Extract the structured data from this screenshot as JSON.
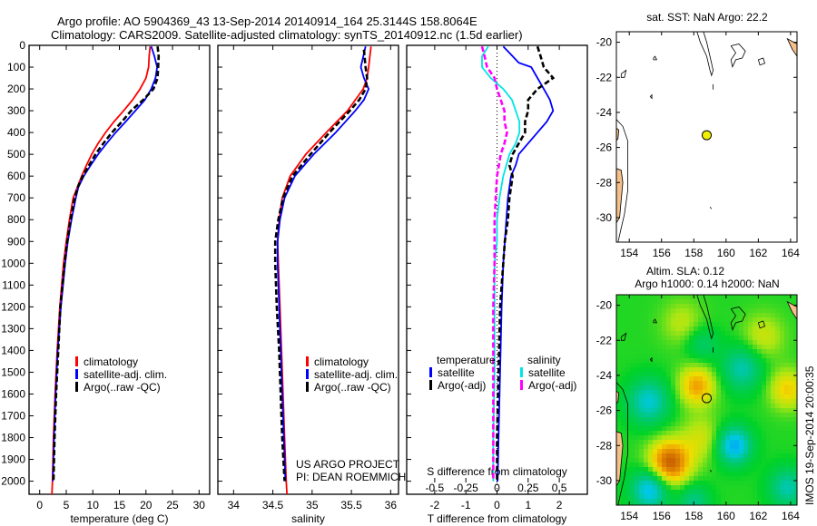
{
  "header": {
    "line1": "Argo profile: AO 5904369_43 13-Sep-2014 20140914_164 25.3144S 158.8064E",
    "line2": "Climatology: CARS2009. Satellite-adjusted climatology: synTS_20140912.nc (1.5d earlier)"
  },
  "colors": {
    "climatology": "#ff0000",
    "satellite": "#0000ff",
    "argo": "#000000",
    "sal_satellite": "#00e5e5",
    "sal_argo": "#ff00ff",
    "land": "#f5c08a",
    "float_marker": "#f0f000"
  },
  "chart_data": [
    {
      "id": "temperature",
      "type": "line",
      "xlabel": "temperature (deg C)",
      "ylabel": "",
      "xlim": [
        -2,
        32
      ],
      "ylim": [
        2060,
        0
      ],
      "xticks": [
        0,
        5,
        10,
        15,
        20,
        25,
        30
      ],
      "yticks": [
        0,
        100,
        200,
        300,
        400,
        500,
        600,
        700,
        800,
        900,
        1000,
        1100,
        1200,
        1300,
        1400,
        1500,
        1600,
        1700,
        1800,
        1900,
        2000
      ],
      "legend": {
        "placement": "lower-middle",
        "entries": [
          "climatology",
          "satellite-adj. clim.",
          "Argo(..raw -QC)"
        ]
      },
      "series": [
        {
          "name": "climatology",
          "color": "#ff0000",
          "style": "solid",
          "depth": [
            5,
            50,
            100,
            150,
            200,
            250,
            300,
            350,
            400,
            450,
            500,
            550,
            600,
            650,
            700,
            800,
            900,
            1000,
            1200,
            1400,
            1600,
            1800,
            2000,
            2060
          ],
          "values": [
            20.8,
            20.6,
            20.5,
            20.0,
            18.9,
            17.5,
            15.8,
            14.0,
            12.4,
            11.0,
            9.8,
            8.8,
            7.9,
            7.1,
            6.3,
            5.6,
            5.0,
            4.5,
            3.8,
            3.3,
            2.9,
            2.6,
            2.4,
            2.3
          ]
        },
        {
          "name": "satellite-adj. clim.",
          "color": "#0000ff",
          "style": "solid",
          "depth": [
            5,
            50,
            100,
            150,
            200,
            250,
            300,
            350,
            400,
            450,
            500,
            550,
            600,
            650,
            700,
            800,
            900,
            1000,
            1200,
            1400,
            1600,
            1800,
            2000
          ],
          "values": [
            21.0,
            21.6,
            22.1,
            21.8,
            21.0,
            19.8,
            18.0,
            16.2,
            14.3,
            12.6,
            11.0,
            9.6,
            8.3,
            7.3,
            6.8,
            6.0,
            5.3,
            4.8,
            4.0,
            3.4,
            3.0,
            2.7,
            2.5
          ]
        },
        {
          "name": "Argo(..raw -QC)",
          "color": "#000000",
          "style": "dashed",
          "depth": [
            5,
            50,
            100,
            150,
            200,
            250,
            300,
            350,
            400,
            450,
            500,
            550,
            600,
            650,
            700,
            800,
            900,
            1000,
            1200,
            1400,
            1600,
            1800,
            2000
          ],
          "values": [
            22.2,
            22.4,
            22.3,
            22.2,
            21.4,
            19.5,
            17.2,
            15.5,
            13.6,
            12.0,
            10.5,
            9.3,
            8.1,
            7.2,
            6.6,
            5.8,
            5.2,
            4.7,
            3.9,
            3.5,
            3.1,
            2.8,
            2.6
          ]
        }
      ]
    },
    {
      "id": "salinity",
      "type": "line",
      "xlabel": "salinity",
      "ylabel": "",
      "xlim": [
        33.8,
        36.1
      ],
      "ylim": [
        2060,
        0
      ],
      "xticks": [
        34,
        34.5,
        35,
        35.5,
        36
      ],
      "xticklabels": [
        "34",
        "34.5",
        "35",
        "35.5",
        "36"
      ],
      "legend": {
        "placement": "lower-middle",
        "entries": [
          "climatology",
          "satellite-adj. clim.",
          "Argo(..raw -QC)"
        ]
      },
      "annotation": [
        "US ARGO PROJECT",
        "PI: DEAN ROEMMICH"
      ],
      "series": [
        {
          "name": "climatology",
          "color": "#ff0000",
          "style": "solid",
          "depth": [
            5,
            100,
            150,
            200,
            300,
            400,
            500,
            600,
            700,
            800,
            900,
            1000,
            1200,
            1400,
            1600,
            1800,
            2000,
            2060
          ],
          "values": [
            35.75,
            35.72,
            35.7,
            35.65,
            35.45,
            35.18,
            34.92,
            34.72,
            34.62,
            34.58,
            34.56,
            34.57,
            34.59,
            34.61,
            34.63,
            34.65,
            34.67,
            34.68
          ]
        },
        {
          "name": "satellite-adj. clim.",
          "color": "#0000ff",
          "style": "solid",
          "depth": [
            5,
            100,
            150,
            200,
            250,
            300,
            400,
            500,
            600,
            700,
            800,
            900,
            1000,
            1200,
            1400,
            1600,
            1800,
            2000
          ],
          "values": [
            35.68,
            35.62,
            35.66,
            35.72,
            35.66,
            35.55,
            35.3,
            35.02,
            34.78,
            34.65,
            34.59,
            34.56,
            34.56,
            34.58,
            34.6,
            34.62,
            34.64,
            34.66
          ]
        },
        {
          "name": "Argo(..raw -QC)",
          "color": "#000000",
          "style": "dashed",
          "depth": [
            20,
            100,
            150,
            200,
            250,
            300,
            400,
            500,
            600,
            700,
            800,
            900,
            1000,
            1200,
            1400,
            1600,
            1800,
            2000
          ],
          "values": [
            35.66,
            35.68,
            35.7,
            35.68,
            35.6,
            35.48,
            35.22,
            34.98,
            34.75,
            34.63,
            34.57,
            34.53,
            34.53,
            34.55,
            34.58,
            34.6,
            34.62,
            34.65
          ]
        }
      ]
    },
    {
      "id": "difference",
      "type": "line",
      "xlabel": "T difference from climatology",
      "xlabel2": "S difference from climatology",
      "xlim": [
        -2.9,
        2.9
      ],
      "x2lim": [
        -0.725,
        0.725
      ],
      "ylim": [
        2060,
        0
      ],
      "xticks": [
        -2,
        -1,
        0,
        1,
        2
      ],
      "x2ticks": [
        -0.5,
        -0.25,
        0,
        0.25,
        0.5
      ],
      "x2ticklabels": [
        "-0.5",
        "-0.25",
        "0",
        "0.25",
        "0.5"
      ],
      "legend": {
        "placement": "lower-middle",
        "temperature_header": "temperature",
        "salinity_header": "salinity",
        "entries": [
          "satellite",
          "Argo(-adj)",
          "satellite",
          "Argo(-adj)"
        ]
      },
      "series": [
        {
          "name": "temperature satellite",
          "axis": "T",
          "color": "#0000ff",
          "style": "solid",
          "depth": [
            5,
            50,
            80,
            100,
            150,
            200,
            250,
            300,
            350,
            400,
            450,
            500,
            550,
            600,
            700,
            800,
            1000,
            1200,
            1500,
            1800,
            2000
          ],
          "values": [
            0.2,
            0.5,
            0.7,
            1.1,
            1.3,
            1.5,
            1.7,
            1.8,
            1.6,
            1.3,
            1.0,
            0.7,
            0.6,
            0.45,
            0.35,
            0.3,
            0.2,
            0.15,
            0.1,
            0.05,
            0.02
          ]
        },
        {
          "name": "temperature Argo(-adj)",
          "axis": "T",
          "color": "#000000",
          "style": "dashed",
          "depth": [
            5,
            50,
            100,
            150,
            200,
            250,
            300,
            350,
            400,
            450,
            500,
            550,
            600,
            700,
            800,
            900,
            1000,
            1200,
            1500,
            1800,
            2000
          ],
          "values": [
            1.3,
            1.4,
            1.5,
            1.8,
            1.3,
            1.0,
            1.0,
            0.9,
            0.9,
            0.7,
            0.5,
            0.4,
            0.5,
            0.4,
            0.35,
            0.25,
            0.2,
            0.1,
            0.05,
            0.0,
            0.0
          ]
        },
        {
          "name": "salinity satellite",
          "axis": "S",
          "color": "#00e5e5",
          "style": "solid",
          "depth": [
            5,
            50,
            100,
            150,
            200,
            250,
            300,
            350,
            400,
            450,
            500,
            600,
            700,
            800,
            900,
            1000,
            1200,
            1500,
            1800,
            2000
          ],
          "values": [
            -0.07,
            -0.12,
            -0.12,
            -0.05,
            0.05,
            0.12,
            0.15,
            0.18,
            0.18,
            0.15,
            0.1,
            0.05,
            0.02,
            0.0,
            0.0,
            -0.02,
            -0.02,
            -0.02,
            -0.03,
            -0.03
          ]
        },
        {
          "name": "salinity Argo(-adj)",
          "axis": "S",
          "color": "#ff00ff",
          "style": "dashed",
          "depth": [
            5,
            50,
            100,
            150,
            200,
            250,
            300,
            350,
            400,
            450,
            500,
            600,
            700,
            800,
            1000,
            1200,
            1500,
            1800,
            2000
          ],
          "values": [
            -0.12,
            -0.1,
            -0.08,
            -0.02,
            0.0,
            0.03,
            0.06,
            0.06,
            0.08,
            0.06,
            0.03,
            0.0,
            -0.01,
            -0.02,
            -0.02,
            -0.03,
            -0.03,
            -0.03,
            -0.03
          ]
        }
      ]
    },
    {
      "id": "sst-map",
      "type": "map",
      "title": "sat. SST: NaN Argo: 22.2",
      "xlim": [
        153.2,
        164.4
      ],
      "ylim": [
        -31.4,
        -19.4
      ],
      "xticks": [
        154,
        156,
        158,
        160,
        162,
        164
      ],
      "yticks": [
        -20,
        -22,
        -24,
        -26,
        -28,
        -30
      ],
      "float_position": {
        "lon": 158.8,
        "lat": -25.3
      }
    },
    {
      "id": "sla-map",
      "type": "heatmap",
      "title_line1": "Altim. SLA: 0.12",
      "title_line2": "Argo h1000: 0.14 h2000: NaN",
      "xlim": [
        153.2,
        164.4
      ],
      "ylim": [
        -31.4,
        -19.4
      ],
      "xticks": [
        154,
        156,
        158,
        160,
        162,
        164
      ],
      "yticks": [
        -20,
        -22,
        -24,
        -26,
        -28,
        -30
      ],
      "float_position": {
        "lon": 158.8,
        "lat": -25.3
      },
      "features": [
        {
          "lon": 156.5,
          "lat": -29.0,
          "value": 0.9,
          "spread": 0.9
        },
        {
          "lon": 158.2,
          "lat": -24.6,
          "value": 0.6,
          "spread": 0.8
        },
        {
          "lon": 163.8,
          "lat": -24.8,
          "value": 0.45,
          "spread": 0.8
        },
        {
          "lon": 162.3,
          "lat": -21.8,
          "value": 0.3,
          "spread": 0.9
        },
        {
          "lon": 157.3,
          "lat": -21.0,
          "value": 0.25,
          "spread": 0.9
        },
        {
          "lon": 158.5,
          "lat": -27.6,
          "value": 0.3,
          "spread": 0.9
        },
        {
          "lon": 155.2,
          "lat": -25.5,
          "value": -0.6,
          "spread": 0.9
        },
        {
          "lon": 161.0,
          "lat": -23.6,
          "value": -0.5,
          "spread": 0.9
        },
        {
          "lon": 160.5,
          "lat": -28.0,
          "value": -0.8,
          "spread": 0.75
        },
        {
          "lon": 155.3,
          "lat": -30.5,
          "value": -0.75,
          "spread": 0.8
        },
        {
          "lon": 163.8,
          "lat": -30.4,
          "value": -0.5,
          "spread": 0.8
        },
        {
          "lon": 158.0,
          "lat": -31.2,
          "value": -0.4,
          "spread": 0.7
        },
        {
          "lon": 158.5,
          "lat": -22.2,
          "value": -0.3,
          "spread": 0.7
        }
      ]
    }
  ],
  "side_stamp": "IMOS 19-Sep-2014 20:00:35"
}
